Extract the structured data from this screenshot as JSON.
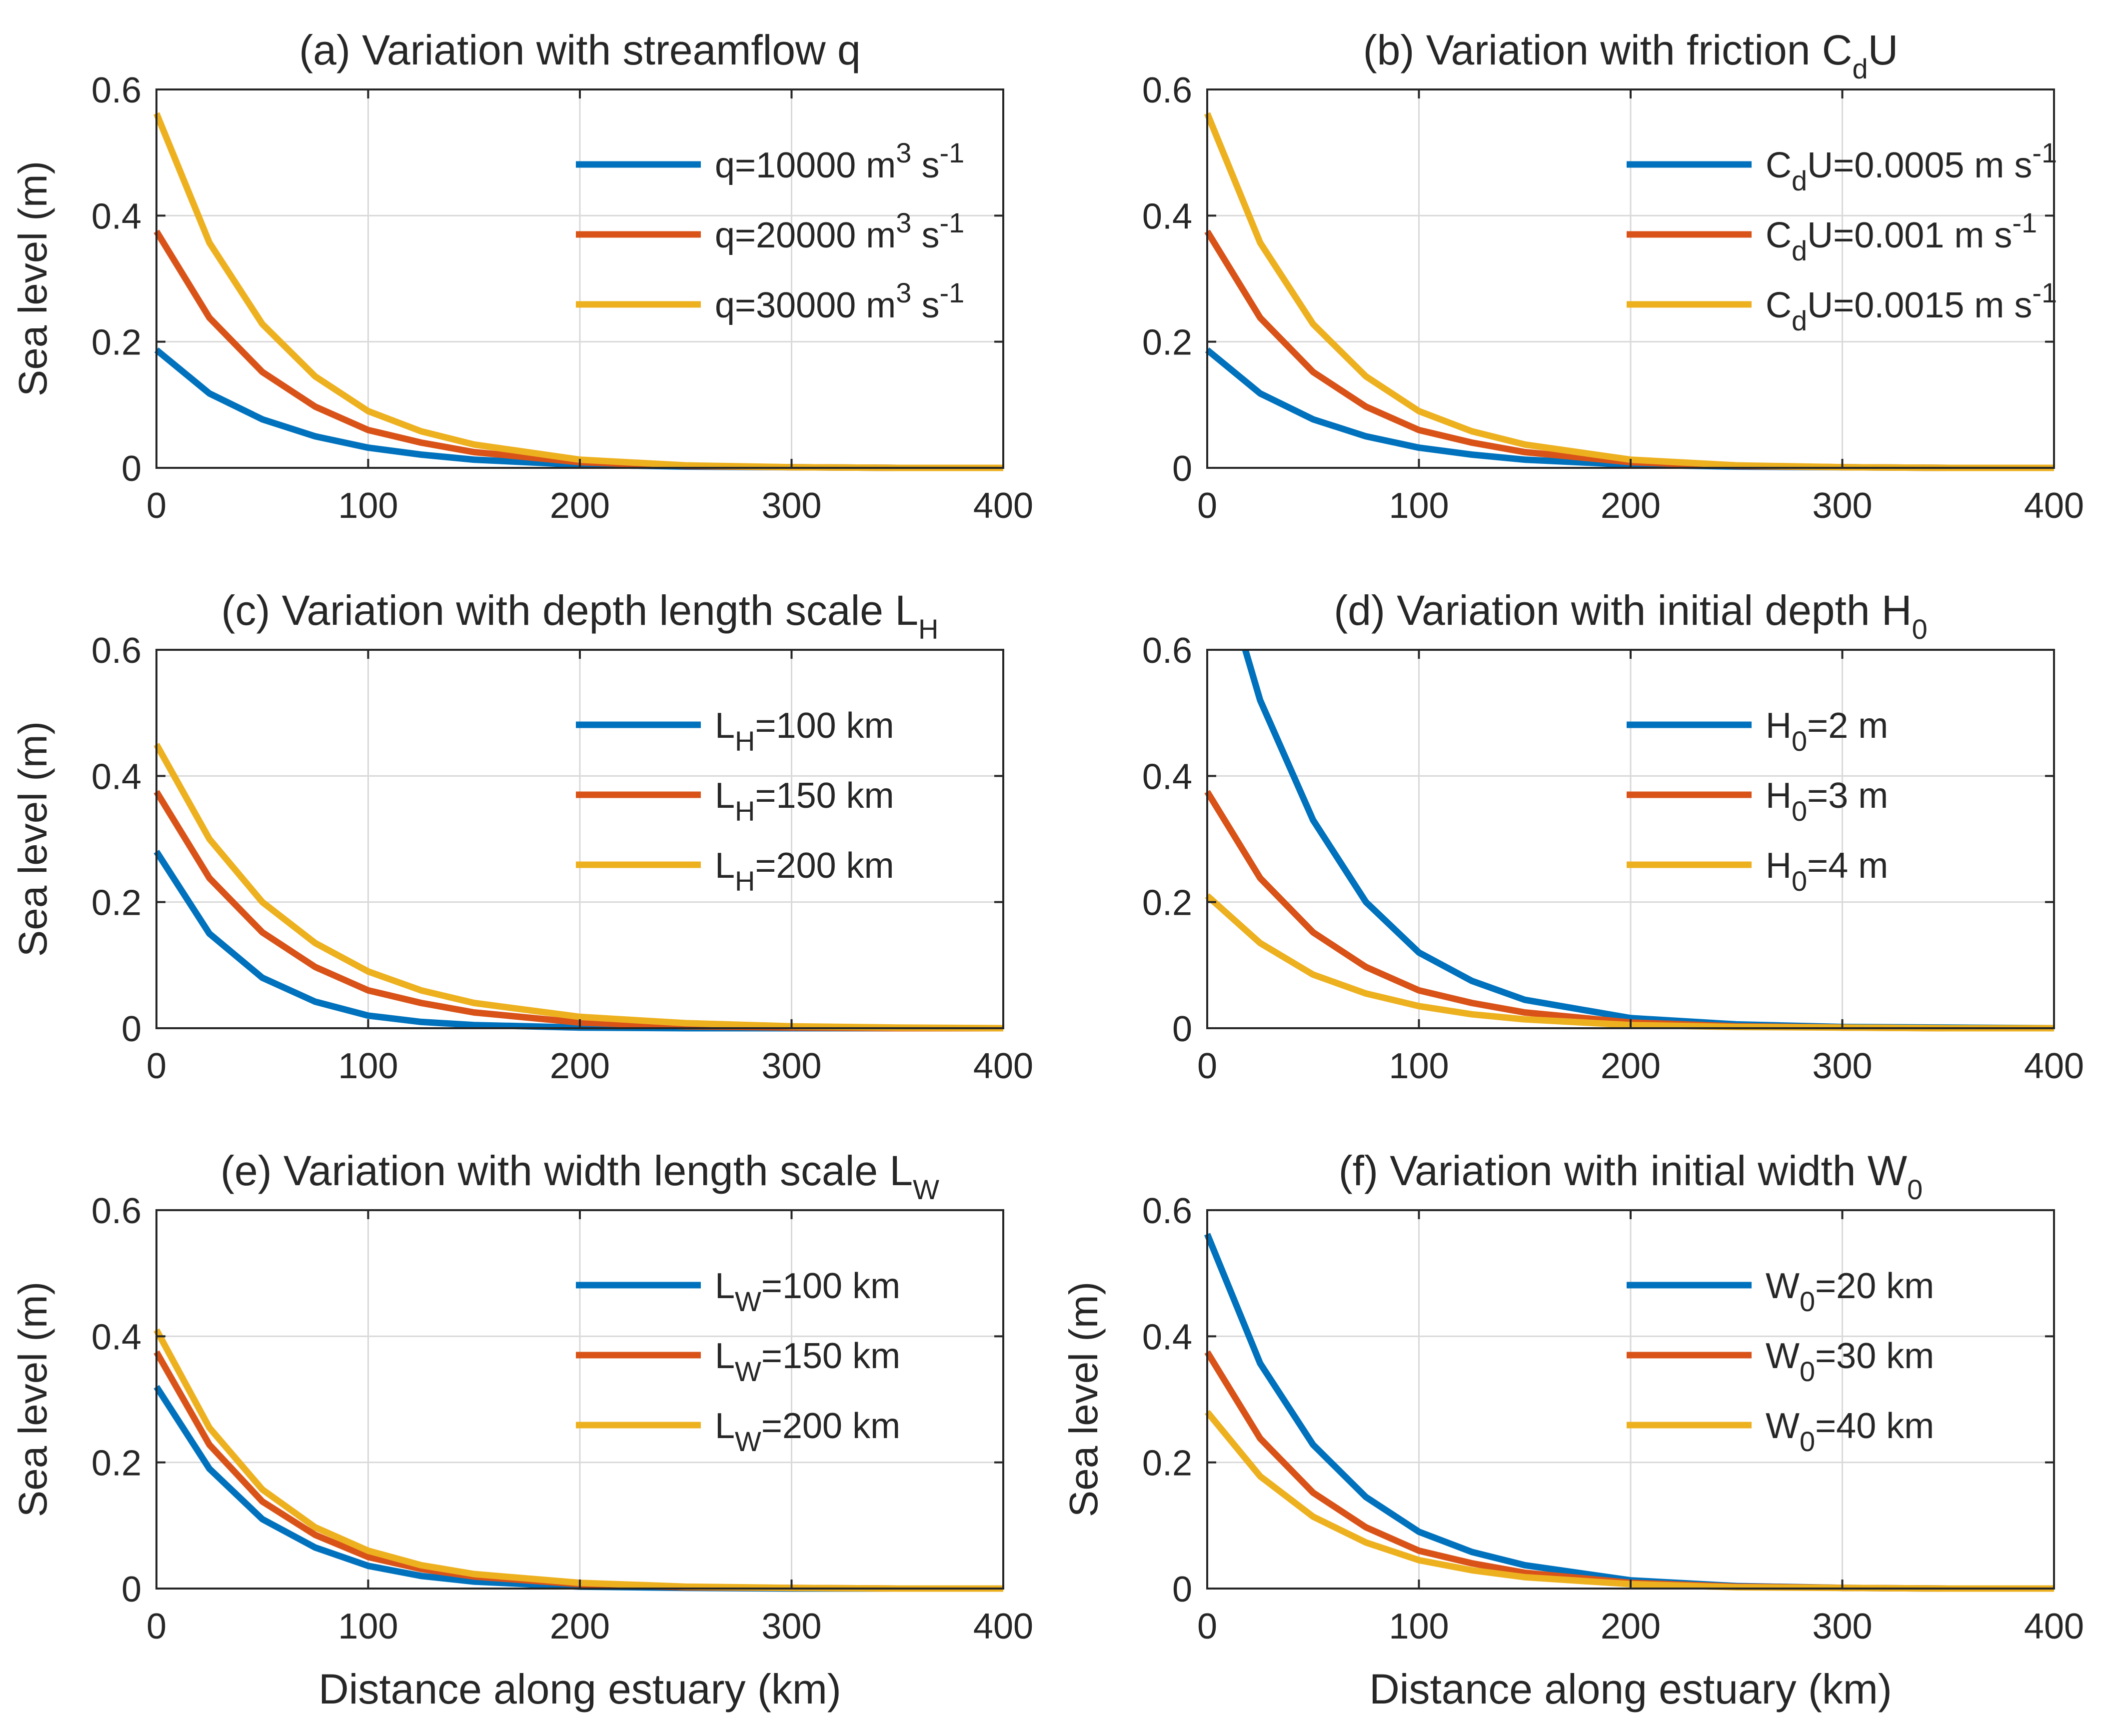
{
  "figure": {
    "colors": {
      "blue": "#0072BD",
      "orange": "#D95319",
      "yellow": "#EDB120",
      "axis": "#262626",
      "grid": "#d9d9d9"
    }
  },
  "chart_data": [
    {
      "id": "a",
      "type": "line",
      "title": {
        "main": "(a) Variation with streamflow q",
        "sub": ""
      },
      "xlabel": "",
      "ylabel": "Sea level (m)",
      "xlim": [
        0,
        400
      ],
      "ylim": [
        0,
        0.6
      ],
      "xticks": [
        0,
        100,
        200,
        300,
        400
      ],
      "yticks": [
        0,
        0.2,
        0.4,
        0.6
      ],
      "xtick_labels": [
        "0",
        "100",
        "200",
        "300",
        "400"
      ],
      "ytick_labels": [
        "0",
        "0.2",
        "0.4",
        "0.6"
      ],
      "grid": true,
      "legend": "top-right",
      "series": [
        {
          "name": "q=10000 m^3 s^-1",
          "label": {
            "a": "q=10000 m",
            "sup1": "3",
            "b": " s",
            "sup2": "-1"
          },
          "color": "#0072BD",
          "x": [
            0,
            25,
            50,
            75,
            100,
            125,
            150,
            200,
            250,
            300,
            350,
            400
          ],
          "y": [
            0.187,
            0.118,
            0.077,
            0.05,
            0.032,
            0.021,
            0.013,
            0.005,
            0.002,
            0.001,
            0.0,
            0.0
          ]
        },
        {
          "name": "q=20000 m^3 s^-1",
          "label": {
            "a": "q=20000 m",
            "sup1": "3",
            "b": " s",
            "sup2": "-1"
          },
          "color": "#D95319",
          "x": [
            0,
            25,
            50,
            75,
            100,
            125,
            150,
            200,
            250,
            300,
            350,
            400
          ],
          "y": [
            0.375,
            0.238,
            0.152,
            0.097,
            0.06,
            0.04,
            0.025,
            0.009,
            0.003,
            0.001,
            0.0,
            0.0
          ]
        },
        {
          "name": "q=30000 m^3 s^-1",
          "label": {
            "a": "q=30000 m",
            "sup1": "3",
            "b": " s",
            "sup2": "-1"
          },
          "color": "#EDB120",
          "x": [
            0,
            25,
            50,
            75,
            100,
            125,
            150,
            200,
            250,
            300,
            350,
            400
          ],
          "y": [
            0.562,
            0.357,
            0.228,
            0.145,
            0.09,
            0.058,
            0.037,
            0.013,
            0.004,
            0.001,
            0.0,
            0.0
          ]
        }
      ]
    },
    {
      "id": "b",
      "type": "line",
      "title": {
        "main": "(b) Variation with friction C",
        "sub": "d",
        "after": "U"
      },
      "xlabel": "",
      "ylabel": "",
      "xlim": [
        0,
        400
      ],
      "ylim": [
        0,
        0.6
      ],
      "xticks": [
        0,
        100,
        200,
        300,
        400
      ],
      "yticks": [
        0,
        0.2,
        0.4,
        0.6
      ],
      "xtick_labels": [
        "0",
        "100",
        "200",
        "300",
        "400"
      ],
      "ytick_labels": [
        "0",
        "0.2",
        "0.4",
        "0.6"
      ],
      "grid": true,
      "legend": "top-right",
      "series": [
        {
          "name": "CdU=0.0005 m s^-1",
          "label": {
            "a": "C",
            "sub1": "d",
            "b": "U=0.0005 m s",
            "sup2": "-1"
          },
          "color": "#0072BD",
          "x": [
            0,
            25,
            50,
            75,
            100,
            125,
            150,
            200,
            250,
            300,
            350,
            400
          ],
          "y": [
            0.187,
            0.118,
            0.077,
            0.05,
            0.032,
            0.021,
            0.013,
            0.005,
            0.002,
            0.001,
            0.0,
            0.0
          ]
        },
        {
          "name": "CdU=0.001 m s^-1",
          "label": {
            "a": "C",
            "sub1": "d",
            "b": "U=0.001 m s",
            "sup2": "-1"
          },
          "color": "#D95319",
          "x": [
            0,
            25,
            50,
            75,
            100,
            125,
            150,
            200,
            250,
            300,
            350,
            400
          ],
          "y": [
            0.375,
            0.238,
            0.152,
            0.097,
            0.06,
            0.04,
            0.025,
            0.009,
            0.003,
            0.001,
            0.0,
            0.0
          ]
        },
        {
          "name": "CdU=0.0015 m s^-1",
          "label": {
            "a": "C",
            "sub1": "d",
            "b": "U=0.0015 m s",
            "sup2": "-1"
          },
          "color": "#EDB120",
          "x": [
            0,
            25,
            50,
            75,
            100,
            125,
            150,
            200,
            250,
            300,
            350,
            400
          ],
          "y": [
            0.562,
            0.357,
            0.228,
            0.145,
            0.09,
            0.058,
            0.037,
            0.013,
            0.004,
            0.001,
            0.0,
            0.0
          ]
        }
      ]
    },
    {
      "id": "c",
      "type": "line",
      "title": {
        "main": "(c) Variation with depth length scale L",
        "sub": "H"
      },
      "xlabel": "",
      "ylabel": "Sea level (m)",
      "xlim": [
        0,
        400
      ],
      "ylim": [
        0,
        0.6
      ],
      "xticks": [
        0,
        100,
        200,
        300,
        400
      ],
      "yticks": [
        0,
        0.2,
        0.4,
        0.6
      ],
      "xtick_labels": [
        "0",
        "100",
        "200",
        "300",
        "400"
      ],
      "ytick_labels": [
        "0",
        "0.2",
        "0.4",
        "0.6"
      ],
      "grid": true,
      "legend": "top-right",
      "series": [
        {
          "name": "LH=100 km",
          "label": {
            "a": "L",
            "sub1": "H",
            "b": "=100 km"
          },
          "color": "#0072BD",
          "x": [
            0,
            25,
            50,
            75,
            100,
            125,
            150,
            200,
            250,
            300,
            350,
            400
          ],
          "y": [
            0.28,
            0.15,
            0.08,
            0.042,
            0.02,
            0.01,
            0.005,
            0.001,
            0.0,
            0.0,
            0.0,
            0.0
          ]
        },
        {
          "name": "LH=150 km",
          "label": {
            "a": "L",
            "sub1": "H",
            "b": "=150 km"
          },
          "color": "#D95319",
          "x": [
            0,
            25,
            50,
            75,
            100,
            125,
            150,
            200,
            250,
            300,
            350,
            400
          ],
          "y": [
            0.375,
            0.238,
            0.152,
            0.097,
            0.06,
            0.04,
            0.025,
            0.009,
            0.003,
            0.001,
            0.0,
            0.0
          ]
        },
        {
          "name": "LH=200 km",
          "label": {
            "a": "L",
            "sub1": "H",
            "b": "=200 km"
          },
          "color": "#EDB120",
          "x": [
            0,
            25,
            50,
            75,
            100,
            125,
            150,
            200,
            250,
            300,
            350,
            400
          ],
          "y": [
            0.45,
            0.3,
            0.2,
            0.135,
            0.09,
            0.06,
            0.04,
            0.018,
            0.008,
            0.003,
            0.001,
            0.0
          ]
        }
      ]
    },
    {
      "id": "d",
      "type": "line",
      "title": {
        "main": "(d) Variation with initial depth H",
        "sub": "0"
      },
      "xlabel": "",
      "ylabel": "",
      "xlim": [
        0,
        400
      ],
      "ylim": [
        0,
        0.6
      ],
      "xticks": [
        0,
        100,
        200,
        300,
        400
      ],
      "yticks": [
        0,
        0.2,
        0.4,
        0.6
      ],
      "xtick_labels": [
        "0",
        "100",
        "200",
        "300",
        "400"
      ],
      "ytick_labels": [
        "0",
        "0.2",
        "0.4",
        "0.6"
      ],
      "grid": true,
      "legend": "top-right",
      "series": [
        {
          "name": "H0=2 m",
          "label": {
            "a": "H",
            "sub1": "0",
            "b": "=2 m"
          },
          "color": "#0072BD",
          "x": [
            18,
            25,
            50,
            75,
            100,
            125,
            150,
            200,
            250,
            300,
            350,
            400
          ],
          "y": [
            0.6,
            0.52,
            0.33,
            0.2,
            0.12,
            0.075,
            0.045,
            0.016,
            0.006,
            0.002,
            0.001,
            0.0
          ]
        },
        {
          "name": "H0=3 m",
          "label": {
            "a": "H",
            "sub1": "0",
            "b": "=3 m"
          },
          "color": "#D95319",
          "x": [
            0,
            25,
            50,
            75,
            100,
            125,
            150,
            200,
            250,
            300,
            350,
            400
          ],
          "y": [
            0.375,
            0.238,
            0.152,
            0.097,
            0.06,
            0.04,
            0.025,
            0.009,
            0.003,
            0.001,
            0.0,
            0.0
          ]
        },
        {
          "name": "H0=4 m",
          "label": {
            "a": "H",
            "sub1": "0",
            "b": "=4 m"
          },
          "color": "#EDB120",
          "x": [
            0,
            25,
            50,
            75,
            100,
            125,
            150,
            200,
            250,
            300,
            350,
            400
          ],
          "y": [
            0.21,
            0.135,
            0.085,
            0.055,
            0.035,
            0.022,
            0.014,
            0.005,
            0.002,
            0.001,
            0.0,
            0.0
          ]
        }
      ]
    },
    {
      "id": "e",
      "type": "line",
      "title": {
        "main": "(e) Variation with width length scale L",
        "sub": "W"
      },
      "xlabel": "Distance along estuary (km)",
      "ylabel": "Sea level (m)",
      "xlim": [
        0,
        400
      ],
      "ylim": [
        0,
        0.6
      ],
      "xticks": [
        0,
        100,
        200,
        300,
        400
      ],
      "yticks": [
        0,
        0.2,
        0.4,
        0.6
      ],
      "xtick_labels": [
        "0",
        "100",
        "200",
        "300",
        "400"
      ],
      "ytick_labels": [
        "0",
        "0.2",
        "0.4",
        "0.6"
      ],
      "grid": true,
      "legend": "top-right",
      "series": [
        {
          "name": "LW=100 km",
          "label": {
            "a": "L",
            "sub1": "W",
            "b": "=100 km"
          },
          "color": "#0072BD",
          "x": [
            0,
            25,
            50,
            75,
            100,
            125,
            150,
            200,
            250,
            300,
            350,
            400
          ],
          "y": [
            0.32,
            0.19,
            0.11,
            0.065,
            0.036,
            0.02,
            0.011,
            0.003,
            0.001,
            0.0,
            0.0,
            0.0
          ]
        },
        {
          "name": "LW=150 km",
          "label": {
            "a": "L",
            "sub1": "W",
            "b": "=150 km"
          },
          "color": "#D95319",
          "x": [
            0,
            25,
            50,
            75,
            100,
            125,
            150,
            200,
            250,
            300,
            350,
            400
          ],
          "y": [
            0.375,
            0.228,
            0.138,
            0.085,
            0.05,
            0.031,
            0.019,
            0.007,
            0.002,
            0.001,
            0.0,
            0.0
          ]
        },
        {
          "name": "LW=200 km",
          "label": {
            "a": "L",
            "sub1": "W",
            "b": "=200 km"
          },
          "color": "#EDB120",
          "x": [
            0,
            25,
            50,
            75,
            100,
            125,
            150,
            200,
            250,
            300,
            350,
            400
          ],
          "y": [
            0.41,
            0.255,
            0.157,
            0.097,
            0.06,
            0.037,
            0.023,
            0.009,
            0.003,
            0.001,
            0.0,
            0.0
          ]
        }
      ]
    },
    {
      "id": "f",
      "type": "line",
      "title": {
        "main": "(f) Variation with initial width W",
        "sub": "0"
      },
      "xlabel": "Distance along estuary (km)",
      "ylabel": "Sea level (m)",
      "xlim": [
        0,
        400
      ],
      "ylim": [
        0,
        0.6
      ],
      "xticks": [
        0,
        100,
        200,
        300,
        400
      ],
      "yticks": [
        0,
        0.2,
        0.4,
        0.6
      ],
      "xtick_labels": [
        "0",
        "100",
        "200",
        "300",
        "400"
      ],
      "ytick_labels": [
        "0",
        "0.2",
        "0.4",
        "0.6"
      ],
      "grid": true,
      "legend": "top-right",
      "series": [
        {
          "name": "W0=20 km",
          "label": {
            "a": "W",
            "sub1": "0",
            "b": "=20 km"
          },
          "color": "#0072BD",
          "x": [
            0,
            25,
            50,
            75,
            100,
            125,
            150,
            200,
            250,
            300,
            350,
            400
          ],
          "y": [
            0.562,
            0.357,
            0.228,
            0.145,
            0.09,
            0.058,
            0.037,
            0.013,
            0.004,
            0.001,
            0.0,
            0.0
          ]
        },
        {
          "name": "W0=30 km",
          "label": {
            "a": "W",
            "sub1": "0",
            "b": "=30 km"
          },
          "color": "#D95319",
          "x": [
            0,
            25,
            50,
            75,
            100,
            125,
            150,
            200,
            250,
            300,
            350,
            400
          ],
          "y": [
            0.375,
            0.238,
            0.152,
            0.097,
            0.06,
            0.04,
            0.025,
            0.009,
            0.003,
            0.001,
            0.0,
            0.0
          ]
        },
        {
          "name": "W0=40 km",
          "label": {
            "a": "W",
            "sub1": "0",
            "b": "=40 km"
          },
          "color": "#EDB120",
          "x": [
            0,
            25,
            50,
            75,
            100,
            125,
            150,
            200,
            250,
            300,
            350,
            400
          ],
          "y": [
            0.28,
            0.178,
            0.114,
            0.073,
            0.045,
            0.029,
            0.018,
            0.007,
            0.002,
            0.001,
            0.0,
            0.0
          ]
        }
      ]
    }
  ]
}
